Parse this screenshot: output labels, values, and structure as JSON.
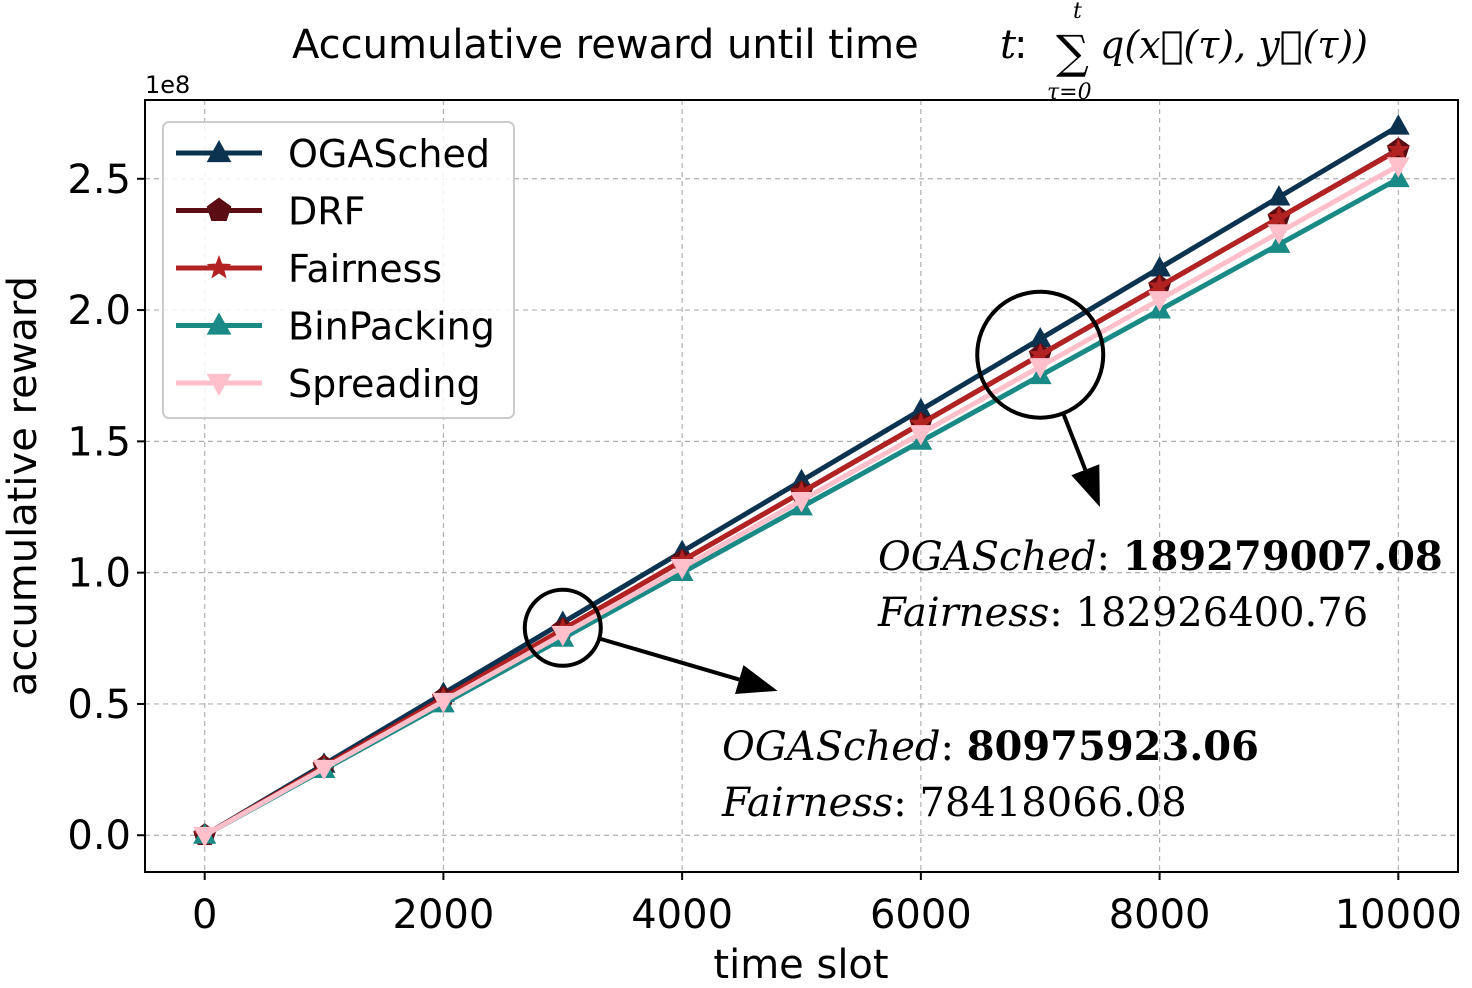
{
  "chart_data": {
    "type": "line",
    "title": {
      "prefix": "Accumulative reward until time",
      "var": "t",
      "colon": ":",
      "sum_upper": "t",
      "sum_lower": "τ=0",
      "sum_symbol": "∑",
      "formula": "q(x⃗(τ), y⃗(τ))"
    },
    "xlabel": "time slot",
    "ylabel": "accumulative reward",
    "y_multiplier": "1e8",
    "xlim": [
      -500,
      10500
    ],
    "ylim": [
      -0.14,
      2.8
    ],
    "xticks": [
      0,
      2000,
      4000,
      6000,
      8000,
      10000
    ],
    "xtick_labels": [
      "0",
      "2000",
      "4000",
      "6000",
      "8000",
      "10000"
    ],
    "yticks": [
      0.0,
      0.5,
      1.0,
      1.5,
      2.0,
      2.5
    ],
    "ytick_labels": [
      "0.0",
      "0.5",
      "1.0",
      "1.5",
      "2.0",
      "2.5"
    ],
    "grid": true,
    "legend_position": "top-left",
    "x": [
      0,
      1000,
      2000,
      3000,
      4000,
      5000,
      6000,
      7000,
      8000,
      9000,
      10000
    ],
    "series": [
      {
        "name": "OGASched",
        "color": "#0b3350",
        "marker": "triangle-up",
        "values": [
          0.0,
          0.27,
          0.54,
          0.81,
          1.08,
          1.35,
          1.62,
          1.89,
          2.16,
          2.43,
          2.7
        ]
      },
      {
        "name": "DRF",
        "color": "#5a0d12",
        "marker": "pentagon",
        "values": [
          0.0,
          0.262,
          0.523,
          0.784,
          1.045,
          1.306,
          1.568,
          1.829,
          2.09,
          2.351,
          2.612
        ]
      },
      {
        "name": "Fairness",
        "color": "#b22222",
        "marker": "star",
        "values": [
          0.0,
          0.261,
          0.522,
          0.784,
          1.045,
          1.306,
          1.567,
          1.829,
          2.09,
          2.351,
          2.61
        ]
      },
      {
        "name": "BinPacking",
        "color": "#1a8a86",
        "marker": "triangle-up",
        "values": [
          0.0,
          0.25,
          0.5,
          0.75,
          1.0,
          1.25,
          1.5,
          1.75,
          2.0,
          2.25,
          2.5
        ]
      },
      {
        "name": "Spreading",
        "color": "#ffc0cb",
        "marker": "triangle-down",
        "values": [
          0.0,
          0.255,
          0.51,
          0.765,
          1.02,
          1.275,
          1.53,
          1.785,
          2.04,
          2.295,
          2.55
        ]
      }
    ],
    "annotations": [
      {
        "name": "OGASched",
        "name_suffix": ": ",
        "value": "80975923.06",
        "name2": "Fairness",
        "name2_suffix": ": ",
        "value2": "78418066.08",
        "circle_at": [
          3000,
          0.79
        ],
        "arrow_to": [
          4800,
          0.55
        ]
      },
      {
        "name": "OGASched",
        "name_suffix": ": ",
        "value": "189279007.08",
        "name2": "Fairness",
        "name2_suffix": ": ",
        "value2": "182926400.76",
        "circle_at": [
          7000,
          1.83
        ],
        "arrow_to": [
          7500,
          1.25
        ]
      }
    ]
  }
}
